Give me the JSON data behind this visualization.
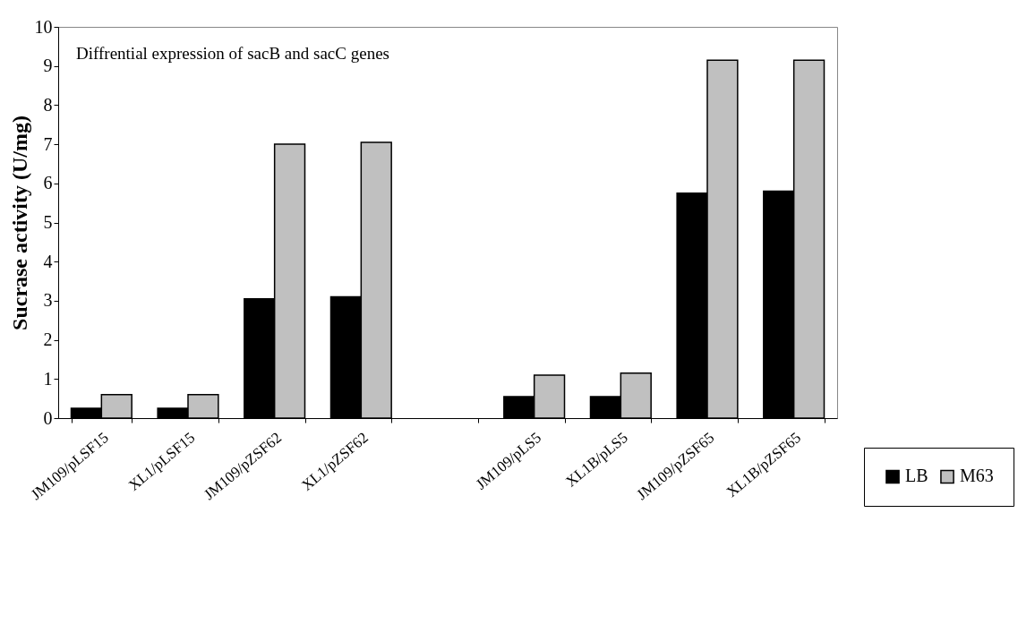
{
  "chart_data": {
    "type": "bar",
    "title": "Diffrential expression of sacB and sacC genes",
    "ylabel": "Sucrase activity (U/mg)",
    "categories": [
      "JM109/pLSF15",
      "XL1/pLSF15",
      "JM109/pZSF62",
      "XL1/pZSF62",
      null,
      "JM109/pLS5",
      "XL1B/pLS5",
      "JM109/pZSF65",
      "XL1B/pZSF65"
    ],
    "series": [
      {
        "name": "LB",
        "color": "#000000",
        "values": [
          0.25,
          0.25,
          3.05,
          3.1,
          null,
          0.55,
          0.55,
          5.75,
          5.8
        ]
      },
      {
        "name": "M63",
        "color": "#c0c0c0",
        "values": [
          0.6,
          0.6,
          7.0,
          7.05,
          null,
          1.1,
          1.15,
          9.15,
          9.15
        ]
      }
    ],
    "ylim": [
      0,
      10
    ],
    "yticks": [
      0,
      1,
      2,
      3,
      4,
      5,
      6,
      7,
      8,
      9,
      10
    ],
    "grid": false,
    "legend": "bottom right"
  }
}
